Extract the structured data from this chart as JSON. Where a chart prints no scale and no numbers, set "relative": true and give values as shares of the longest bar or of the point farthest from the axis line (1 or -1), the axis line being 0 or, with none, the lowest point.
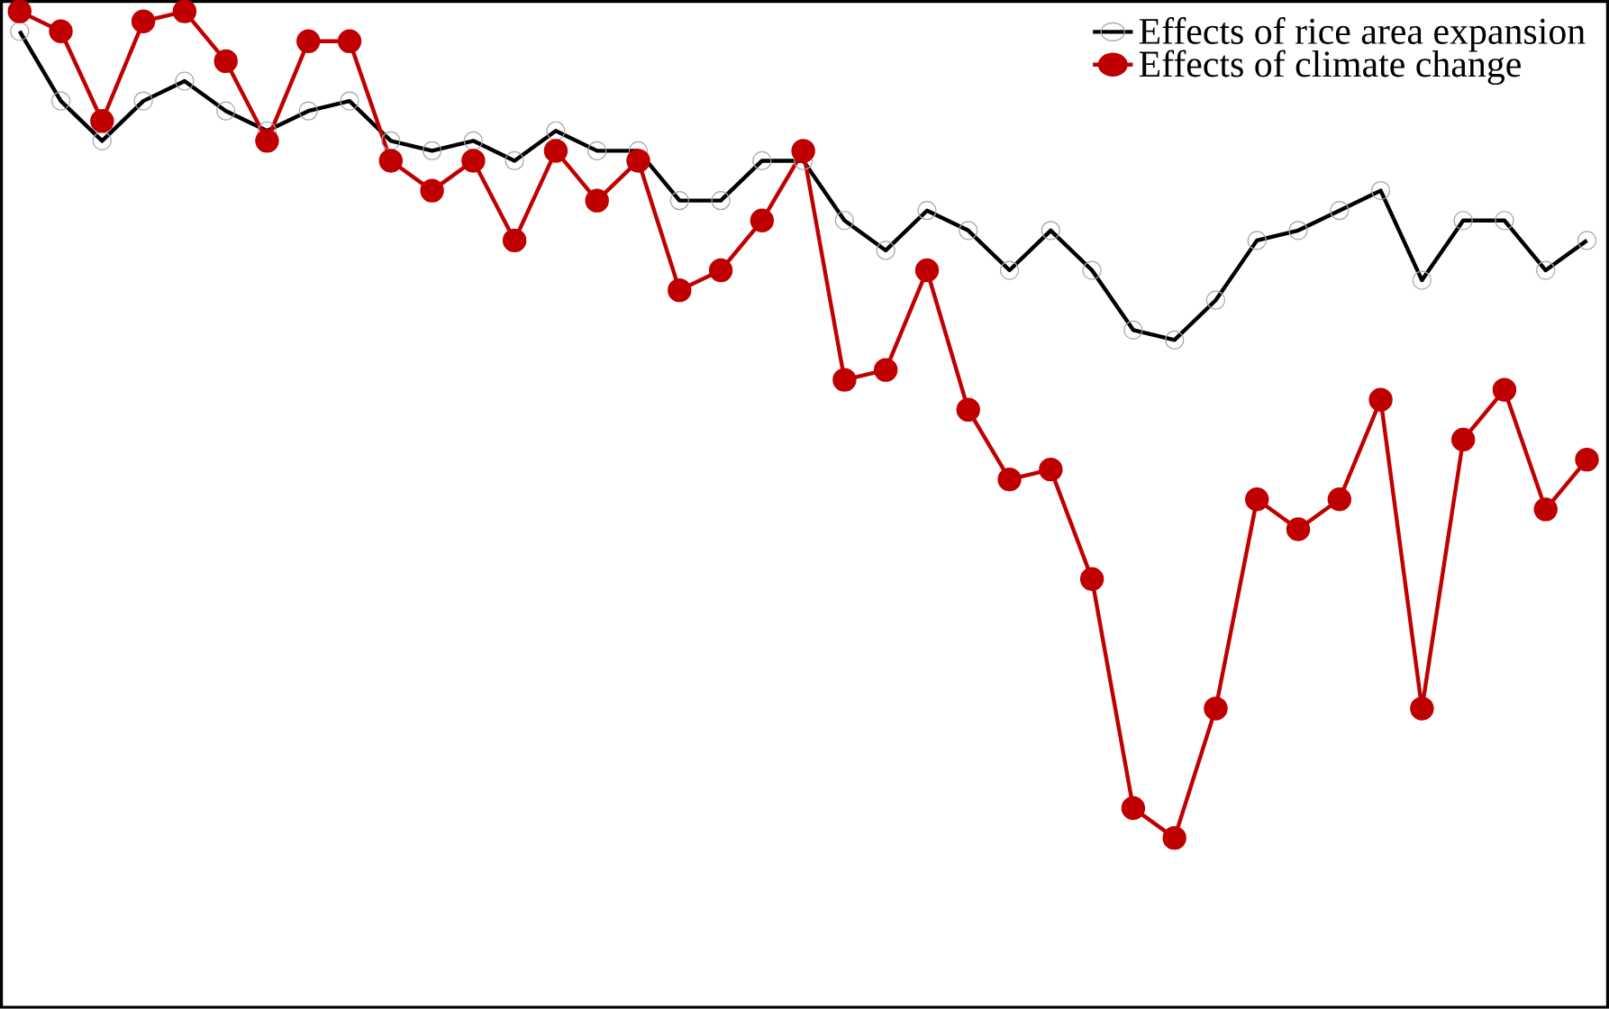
{
  "chart_data": {
    "type": "line",
    "relative": true,
    "legend": "top right",
    "marker": "circle",
    "line_style": "solid",
    "categories": [
      null,
      null,
      null,
      null,
      null,
      null,
      null,
      null,
      null,
      null,
      null,
      null,
      null,
      null,
      null,
      null,
      null,
      null,
      null,
      null,
      null,
      null,
      null,
      null,
      null,
      null,
      null,
      null,
      null,
      null,
      null,
      null,
      null,
      null,
      null,
      null,
      null,
      null,
      null
    ],
    "series": [
      {
        "name": "Effects of rice area expansion",
        "color": "#000000",
        "values": [
          0.98,
          0.91,
          0.87,
          0.91,
          0.93,
          0.9,
          0.88,
          0.9,
          0.91,
          0.87,
          0.86,
          0.87,
          0.85,
          0.88,
          0.86,
          0.86,
          0.81,
          0.81,
          0.85,
          0.85,
          0.79,
          0.76,
          0.8,
          0.78,
          0.74,
          0.78,
          0.74,
          0.68,
          0.67,
          0.71,
          0.77,
          0.78,
          0.8,
          0.82,
          0.73,
          0.79,
          0.79,
          0.74,
          0.77
        ]
      },
      {
        "name": "Effects of climate change",
        "color": "#c00000",
        "values": [
          1,
          0.98,
          0.89,
          0.99,
          1,
          0.95,
          0.87,
          0.97,
          0.97,
          0.85,
          0.82,
          0.85,
          0.77,
          0.86,
          0.81,
          0.85,
          0.72,
          0.74,
          0.79,
          0.86,
          0.63,
          0.64,
          0.74,
          0.6,
          0.53,
          0.54,
          0.43,
          0.2,
          0.17,
          0.3,
          0.51,
          0.48,
          0.51,
          0.61,
          0.3,
          0.57,
          0.62,
          0.5,
          0.55
        ]
      }
    ]
  }
}
